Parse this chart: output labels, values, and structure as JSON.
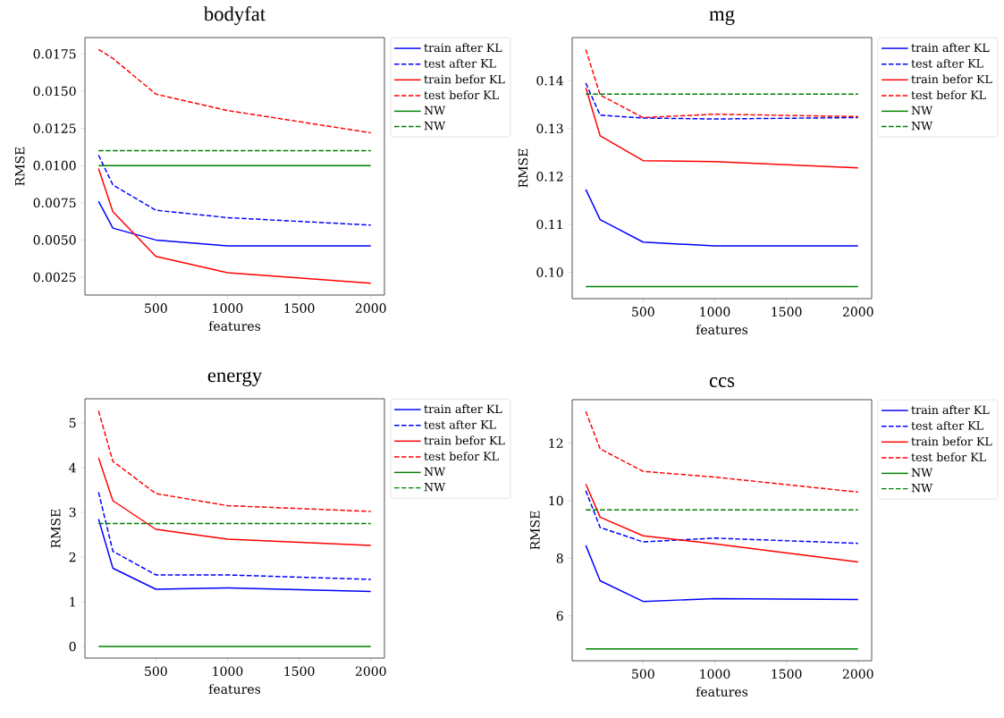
{
  "chart_data": [
    {
      "type": "line",
      "title": "bodyfat",
      "xlabel": "features",
      "ylabel": "RMSE",
      "x": [
        100,
        200,
        500,
        1000,
        2000
      ],
      "xlim": [
        5,
        2095
      ],
      "xticks": [
        500,
        1000,
        1500,
        2000
      ],
      "ylim": [
        0.0013,
        0.0186
      ],
      "yticks": [
        {
          "value": 0.0025,
          "label": "0.0025"
        },
        {
          "value": 0.005,
          "label": "0.0050"
        },
        {
          "value": 0.0075,
          "label": "0.0075"
        },
        {
          "value": 0.01,
          "label": "0.0100"
        },
        {
          "value": 0.0125,
          "label": "0.0125"
        },
        {
          "value": 0.015,
          "label": "0.0150"
        },
        {
          "value": 0.0175,
          "label": "0.0175"
        }
      ],
      "legend": "right",
      "marker": "none",
      "series": [
        {
          "name": "train after KL",
          "color": "#0000ff",
          "line_style": "solid",
          "values": [
            0.0076,
            0.0058,
            0.005,
            0.0046,
            0.0046
          ]
        },
        {
          "name": "test after KL",
          "color": "#0000ff",
          "line_style": "dashed",
          "values": [
            0.0107,
            0.0087,
            0.007,
            0.0065,
            0.006
          ]
        },
        {
          "name": "train befor KL",
          "color": "#ff0000",
          "line_style": "solid",
          "values": [
            0.0098,
            0.0069,
            0.0039,
            0.0028,
            0.0021
          ]
        },
        {
          "name": "test befor KL",
          "color": "#ff0000",
          "line_style": "dashed",
          "values": [
            0.0178,
            0.0172,
            0.0148,
            0.0137,
            0.0122
          ]
        },
        {
          "name": "NW",
          "color": "#008000",
          "line_style": "solid",
          "values": [
            0.01,
            0.01,
            0.01,
            0.01,
            0.01
          ]
        },
        {
          "name": "NW",
          "color": "#008000",
          "line_style": "dashed",
          "values": [
            0.011,
            0.011,
            0.011,
            0.011,
            0.011
          ]
        }
      ]
    },
    {
      "type": "line",
      "title": "mg",
      "xlabel": "features",
      "ylabel": "RMSE",
      "x": [
        100,
        200,
        500,
        1000,
        2000
      ],
      "xlim": [
        5,
        2095
      ],
      "xticks": [
        500,
        1000,
        1500,
        2000
      ],
      "ylim": [
        0.0945,
        0.149
      ],
      "yticks": [
        {
          "value": 0.1,
          "label": "0.10"
        },
        {
          "value": 0.11,
          "label": "0.11"
        },
        {
          "value": 0.12,
          "label": "0.12"
        },
        {
          "value": 0.13,
          "label": "0.13"
        },
        {
          "value": 0.14,
          "label": "0.14"
        }
      ],
      "legend": "right",
      "marker": "none",
      "series": [
        {
          "name": "train after KL",
          "color": "#0000ff",
          "line_style": "solid",
          "values": [
            0.1173,
            0.111,
            0.1063,
            0.1055,
            0.1055
          ]
        },
        {
          "name": "test after KL",
          "color": "#0000ff",
          "line_style": "dashed",
          "values": [
            0.1395,
            0.1328,
            0.1322,
            0.132,
            0.1323
          ]
        },
        {
          "name": "train befor KL",
          "color": "#ff0000",
          "line_style": "solid",
          "values": [
            0.1385,
            0.1285,
            0.1233,
            0.1231,
            0.1218
          ]
        },
        {
          "name": "test befor KL",
          "color": "#ff0000",
          "line_style": "dashed",
          "values": [
            0.1465,
            0.137,
            0.1323,
            0.133,
            0.1325
          ]
        },
        {
          "name": "NW",
          "color": "#008000",
          "line_style": "solid",
          "values": [
            0.097,
            0.097,
            0.097,
            0.097,
            0.097
          ]
        },
        {
          "name": "NW",
          "color": "#008000",
          "line_style": "dashed",
          "values": [
            0.1372,
            0.1372,
            0.1372,
            0.1372,
            0.1372
          ]
        }
      ]
    },
    {
      "type": "line",
      "title": "energy",
      "xlabel": "features",
      "ylabel": "RMSE",
      "x": [
        100,
        200,
        500,
        1000,
        2000
      ],
      "xlim": [
        5,
        2095
      ],
      "xticks": [
        500,
        1000,
        1500,
        2000
      ],
      "ylim": [
        -0.26,
        5.54
      ],
      "yticks": [
        0,
        1,
        2,
        3,
        4,
        5
      ],
      "legend": "right",
      "marker": "none",
      "series": [
        {
          "name": "train after KL",
          "color": "#0000ff",
          "line_style": "solid",
          "values": [
            2.85,
            1.75,
            1.28,
            1.31,
            1.23
          ]
        },
        {
          "name": "test after KL",
          "color": "#0000ff",
          "line_style": "dashed",
          "values": [
            3.45,
            2.13,
            1.6,
            1.6,
            1.5
          ]
        },
        {
          "name": "train befor KL",
          "color": "#ff0000",
          "line_style": "solid",
          "values": [
            4.22,
            3.26,
            2.62,
            2.4,
            2.26
          ]
        },
        {
          "name": "test befor KL",
          "color": "#ff0000",
          "line_style": "dashed",
          "values": [
            5.27,
            4.14,
            3.42,
            3.15,
            3.02
          ]
        },
        {
          "name": "NW",
          "color": "#008000",
          "line_style": "solid",
          "values": [
            0,
            0,
            0,
            0,
            0
          ]
        },
        {
          "name": "NW",
          "color": "#008000",
          "line_style": "dashed",
          "values": [
            2.75,
            2.75,
            2.75,
            2.75,
            2.75
          ]
        }
      ]
    },
    {
      "type": "line",
      "title": "ccs",
      "xlabel": "features",
      "ylabel": "RMSE",
      "x": [
        100,
        200,
        500,
        1000,
        2000
      ],
      "xlim": [
        5,
        2095
      ],
      "xticks": [
        500,
        1000,
        1500,
        2000
      ],
      "ylim": [
        4.44,
        13.51
      ],
      "yticks": [
        6,
        8,
        10,
        12
      ],
      "legend": "right",
      "marker": "none",
      "series": [
        {
          "name": "train after KL",
          "color": "#0000ff",
          "line_style": "solid",
          "values": [
            8.45,
            7.22,
            6.5,
            6.6,
            6.57
          ]
        },
        {
          "name": "test after KL",
          "color": "#0000ff",
          "line_style": "dashed",
          "values": [
            10.35,
            9.07,
            8.57,
            8.7,
            8.52
          ]
        },
        {
          "name": "train befor KL",
          "color": "#ff0000",
          "line_style": "solid",
          "values": [
            10.58,
            9.43,
            8.78,
            8.5,
            7.87
          ]
        },
        {
          "name": "test befor KL",
          "color": "#ff0000",
          "line_style": "dashed",
          "values": [
            13.1,
            11.8,
            11.02,
            10.82,
            10.3
          ]
        },
        {
          "name": "NW",
          "color": "#008000",
          "line_style": "solid",
          "values": [
            4.85,
            4.85,
            4.85,
            4.85,
            4.85
          ]
        },
        {
          "name": "NW",
          "color": "#008000",
          "line_style": "dashed",
          "values": [
            9.68,
            9.68,
            9.68,
            9.68,
            9.68
          ]
        }
      ]
    }
  ]
}
